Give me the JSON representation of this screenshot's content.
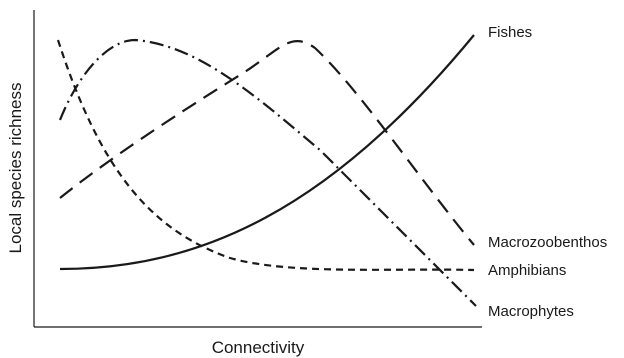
{
  "diagram": {
    "x_axis_label": "Connectivity",
    "y_axis_label": "Local species richness",
    "curves": [
      {
        "name": "Fishes",
        "pattern": "solid"
      },
      {
        "name": "Macrozoobenthos",
        "pattern": "long-dash"
      },
      {
        "name": "Amphibians",
        "pattern": "short-dash"
      },
      {
        "name": "Macrophytes",
        "pattern": "dash-dot"
      }
    ]
  }
}
